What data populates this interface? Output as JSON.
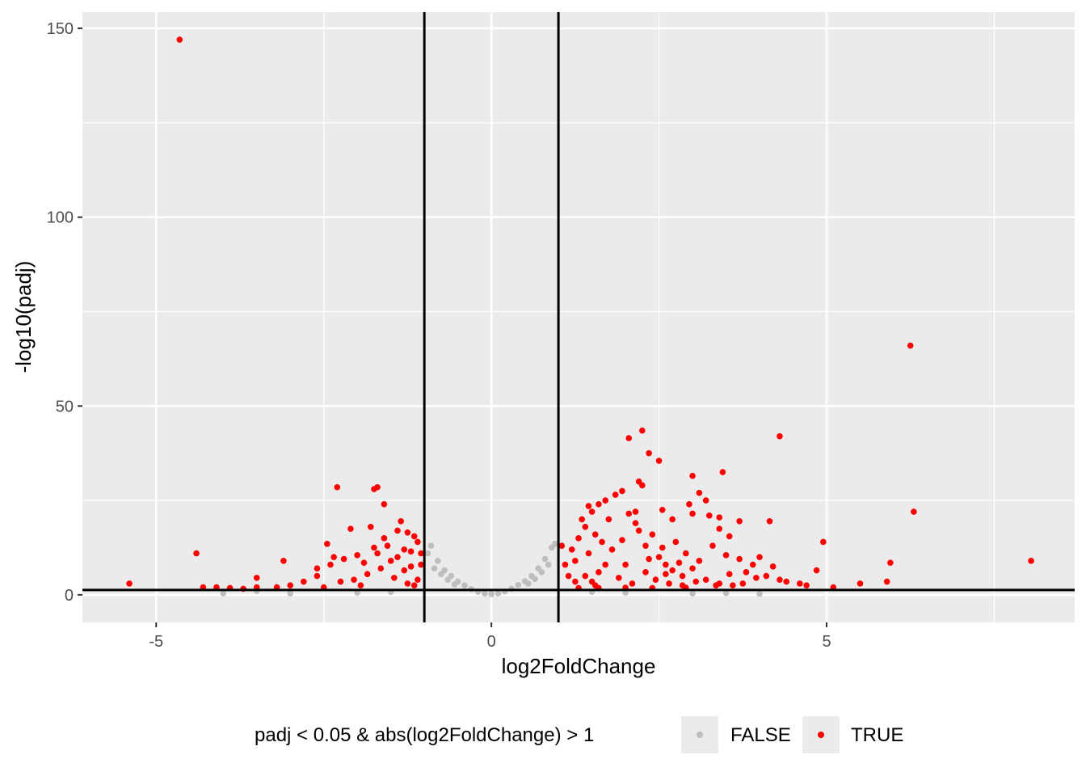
{
  "chart_data": {
    "type": "scatter",
    "title": "",
    "xlabel": "log2FoldChange",
    "ylabel": "-log10(padj)",
    "xlim": [
      -6.1,
      8.7
    ],
    "ylim": [
      -7.3,
      154.3
    ],
    "x_ticks": [
      -5,
      0,
      5
    ],
    "x_tick_labels": [
      "-5",
      "0",
      "5"
    ],
    "y_ticks": [
      0,
      50,
      100,
      150
    ],
    "y_tick_labels": [
      "0",
      "50",
      "100",
      "150"
    ],
    "x_minor_ticks": [
      -2.5,
      2.5,
      7.5
    ],
    "y_minor_ticks": [
      25,
      75,
      125
    ],
    "grid": true,
    "vlines": [
      -1,
      1
    ],
    "hline": 1.3,
    "legend": {
      "title": "padj < 0.05 & abs(log2FoldChange) > 1",
      "position": "bottom",
      "entries": [
        {
          "label": "FALSE",
          "color": "#bebebe"
        },
        {
          "label": "TRUE",
          "color": "#ff0000"
        }
      ]
    },
    "colors": {
      "FALSE": "#bebebe",
      "TRUE": "#ff0000",
      "panel": "#ebebeb",
      "grid": "#ffffff"
    },
    "series": [
      {
        "name": "TRUE",
        "color": "#ff0000",
        "points": [
          [
            -4.65,
            147
          ],
          [
            -5.4,
            3.0
          ],
          [
            -4.4,
            11.0
          ],
          [
            -4.3,
            2.0
          ],
          [
            -4.1,
            2.0
          ],
          [
            -3.9,
            1.8
          ],
          [
            -3.7,
            1.6
          ],
          [
            -3.5,
            2.0
          ],
          [
            -3.5,
            4.5
          ],
          [
            -3.1,
            9.0
          ],
          [
            -2.6,
            7.0
          ],
          [
            -2.3,
            28.5
          ],
          [
            -1.7,
            28.5
          ],
          [
            -1.75,
            28.0
          ],
          [
            -1.6,
            24.0
          ],
          [
            -2.45,
            13.5
          ],
          [
            -1.8,
            18.0
          ],
          [
            -2.1,
            17.5
          ],
          [
            -1.4,
            17.0
          ],
          [
            -1.35,
            19.5
          ],
          [
            -1.25,
            16.5
          ],
          [
            -1.15,
            15.5
          ],
          [
            -1.1,
            14.0
          ],
          [
            -1.2,
            11.5
          ],
          [
            -1.05,
            8.0
          ],
          [
            -1.3,
            6.5
          ],
          [
            -1.5,
            9.0
          ],
          [
            -1.7,
            11.0
          ],
          [
            -1.9,
            8.5
          ],
          [
            -2.0,
            10.5
          ],
          [
            -2.2,
            9.5
          ],
          [
            -2.4,
            8.0
          ],
          [
            -2.35,
            10.0
          ],
          [
            -2.6,
            5.0
          ],
          [
            -2.8,
            3.5
          ],
          [
            -3.0,
            2.5
          ],
          [
            -3.2,
            2.0
          ],
          [
            -1.55,
            13.0
          ],
          [
            -1.65,
            7.0
          ],
          [
            -1.85,
            5.5
          ],
          [
            -2.05,
            4.0
          ],
          [
            -2.25,
            3.5
          ],
          [
            -1.45,
            4.5
          ],
          [
            -1.25,
            3.0
          ],
          [
            -1.1,
            4.0
          ],
          [
            -1.3,
            12.0
          ],
          [
            -1.6,
            15.0
          ],
          [
            -2.5,
            2.0
          ],
          [
            -1.95,
            2.5
          ],
          [
            -1.2,
            7.5
          ],
          [
            -1.4,
            10.0
          ],
          [
            -1.05,
            11.0
          ],
          [
            -1.15,
            2.5
          ],
          [
            -1.75,
            12.5
          ],
          [
            1.1,
            8.0
          ],
          [
            1.2,
            12.0
          ],
          [
            1.3,
            15.0
          ],
          [
            1.4,
            18.0
          ],
          [
            1.5,
            22.0
          ],
          [
            1.6,
            24.0
          ],
          [
            1.7,
            25.0
          ],
          [
            1.35,
            20.0
          ],
          [
            1.45,
            23.5
          ],
          [
            1.55,
            16.0
          ],
          [
            1.65,
            14.0
          ],
          [
            1.75,
            20.0
          ],
          [
            1.85,
            26.5
          ],
          [
            1.95,
            27.5
          ],
          [
            2.05,
            21.5
          ],
          [
            2.15,
            22.0
          ],
          [
            1.15,
            5.0
          ],
          [
            1.25,
            9.0
          ],
          [
            1.05,
            13.0
          ],
          [
            1.45,
            11.0
          ],
          [
            1.6,
            6.0
          ],
          [
            1.8,
            12.0
          ],
          [
            2.0,
            8.0
          ],
          [
            2.2,
            17.0
          ],
          [
            2.3,
            13.0
          ],
          [
            2.5,
            10.0
          ],
          [
            2.6,
            8.0
          ],
          [
            2.7,
            6.5
          ],
          [
            2.85,
            5.0
          ],
          [
            3.0,
            7.0
          ],
          [
            3.2,
            4.0
          ],
          [
            3.4,
            3.0
          ],
          [
            3.6,
            2.5
          ],
          [
            3.8,
            6.0
          ],
          [
            4.0,
            10.0
          ],
          [
            4.2,
            7.5
          ],
          [
            4.4,
            3.5
          ],
          [
            2.4,
            16.0
          ],
          [
            2.55,
            12.5
          ],
          [
            2.75,
            14.0
          ],
          [
            2.9,
            11.0
          ],
          [
            3.1,
            9.0
          ],
          [
            3.3,
            13.0
          ],
          [
            3.5,
            10.5
          ],
          [
            3.7,
            9.5
          ],
          [
            3.9,
            8.0
          ],
          [
            4.1,
            5.0
          ],
          [
            4.3,
            4.0
          ],
          [
            2.05,
            41.5
          ],
          [
            2.25,
            43.5
          ],
          [
            2.35,
            37.5
          ],
          [
            2.5,
            35.5
          ],
          [
            2.2,
            30.0
          ],
          [
            2.25,
            29.0
          ],
          [
            2.55,
            22.5
          ],
          [
            3.0,
            31.5
          ],
          [
            3.45,
            32.5
          ],
          [
            4.3,
            42.0
          ],
          [
            3.1,
            27.0
          ],
          [
            3.2,
            25.0
          ],
          [
            2.95,
            24.0
          ],
          [
            2.7,
            20.0
          ],
          [
            3.0,
            21.5
          ],
          [
            3.25,
            21.0
          ],
          [
            3.4,
            20.5
          ],
          [
            3.7,
            19.5
          ],
          [
            3.4,
            17.5
          ],
          [
            3.55,
            15.5
          ],
          [
            4.15,
            19.5
          ],
          [
            4.95,
            14.0
          ],
          [
            4.85,
            6.5
          ],
          [
            4.6,
            3.0
          ],
          [
            4.7,
            2.5
          ],
          [
            5.1,
            2.0
          ],
          [
            5.5,
            3.0
          ],
          [
            5.9,
            3.5
          ],
          [
            5.95,
            8.5
          ],
          [
            6.25,
            66.0
          ],
          [
            6.3,
            22.0
          ],
          [
            8.05,
            9.0
          ],
          [
            1.25,
            3.5
          ],
          [
            1.4,
            5.0
          ],
          [
            1.55,
            2.5
          ],
          [
            1.7,
            8.0
          ],
          [
            1.9,
            4.5
          ],
          [
            2.1,
            3.0
          ],
          [
            2.3,
            6.0
          ],
          [
            2.45,
            4.0
          ],
          [
            2.65,
            3.0
          ],
          [
            2.85,
            2.5
          ],
          [
            3.05,
            3.5
          ],
          [
            3.35,
            2.5
          ],
          [
            3.55,
            5.5
          ],
          [
            3.75,
            3.0
          ],
          [
            3.95,
            4.5
          ],
          [
            1.5,
            3.5
          ],
          [
            1.95,
            14.5
          ],
          [
            2.15,
            19.0
          ],
          [
            2.35,
            9.5
          ],
          [
            2.6,
            5.5
          ],
          [
            2.8,
            8.5
          ],
          [
            1.3,
            1.8
          ],
          [
            1.6,
            1.8
          ],
          [
            2.0,
            1.9
          ],
          [
            2.4,
            1.8
          ],
          [
            2.9,
            1.9
          ]
        ]
      },
      {
        "name": "FALSE",
        "color": "#bebebe",
        "points": [
          [
            -0.9,
            13.0
          ],
          [
            -0.8,
            9.0
          ],
          [
            -0.7,
            6.5
          ],
          [
            -0.6,
            5.0
          ],
          [
            -0.5,
            3.5
          ],
          [
            -0.4,
            2.5
          ],
          [
            -0.3,
            1.5
          ],
          [
            -0.2,
            0.8
          ],
          [
            -0.1,
            0.4
          ],
          [
            0.0,
            0.2
          ],
          [
            0.1,
            0.4
          ],
          [
            0.2,
            0.9
          ],
          [
            0.3,
            1.6
          ],
          [
            0.4,
            2.6
          ],
          [
            0.5,
            3.6
          ],
          [
            0.6,
            5.0
          ],
          [
            0.7,
            7.0
          ],
          [
            0.8,
            9.5
          ],
          [
            0.9,
            12.5
          ],
          [
            0.95,
            13.5
          ],
          [
            -0.95,
            11.0
          ],
          [
            -0.85,
            7.0
          ],
          [
            -0.75,
            5.5
          ],
          [
            -0.65,
            4.0
          ],
          [
            -0.55,
            2.8
          ],
          [
            0.55,
            3.0
          ],
          [
            0.65,
            4.2
          ],
          [
            0.75,
            6.0
          ],
          [
            0.85,
            8.0
          ],
          [
            -2.0,
            0.6
          ],
          [
            -1.5,
            0.8
          ],
          [
            1.5,
            0.8
          ],
          [
            2.0,
            0.6
          ],
          [
            -3.0,
            0.4
          ],
          [
            3.0,
            0.4
          ],
          [
            -3.5,
            1.0
          ],
          [
            3.5,
            0.5
          ],
          [
            4.0,
            0.3
          ],
          [
            -4.0,
            0.4
          ]
        ]
      }
    ]
  }
}
